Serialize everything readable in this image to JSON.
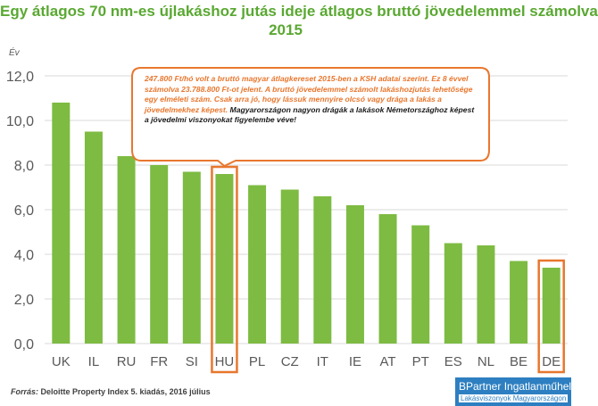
{
  "title_lines": [
    "Egy átlagos 70 nm-es újlakáshoz jutás ideje átlagos bruttó jövedelemmel számolva",
    "2015"
  ],
  "callout": {
    "text_orange": "247.800 Ft/hó volt a bruttó magyar átlagkereset 2015-ben a KSH adatai szerint. Ez 8 évvel számolva 23.788.800 Ft-ot jelent.  A bruttó jövedelemmel számolt lakáshozjutás lehetősége egy elméleti szám. Csak arra jó, hogy lássuk mennyire olcsó vagy drága a lakás a jövedelmekhez képest.",
    "text_black": "Magyarországon nagyon drágák a lakások Németországhoz képest  a jövedelmi viszonyokat figyelembe véve!"
  },
  "source": {
    "label": "Forrás:",
    "text": "Deloitte Property Index 5. kiadás, 2016 július"
  },
  "logo": {
    "line1": "BPartner Ingatlanműhely",
    "line2": "Lakásviszonyok Magyarországon"
  },
  "colors": {
    "bar": "#7dbb42",
    "highlight": "#e8772e",
    "title": "#5aa832",
    "grid": "#d9d9d9",
    "axis_text": "#595959"
  },
  "chart_data": {
    "type": "bar",
    "title": "Egy átlagos 70 nm-es újlakáshoz jutás ideje átlagos bruttó jövedelemmel számolva 2015",
    "ylabel": "Év",
    "xlabel": "",
    "ylim": [
      0,
      12
    ],
    "yticks": [
      "0,0",
      "2,0",
      "4,0",
      "6,0",
      "8,0",
      "10,0",
      "12,0"
    ],
    "grid": true,
    "categories": [
      "UK",
      "IL",
      "RU",
      "FR",
      "SI",
      "HU",
      "PL",
      "CZ",
      "IT",
      "IE",
      "AT",
      "PT",
      "ES",
      "NL",
      "BE",
      "DE"
    ],
    "values": [
      10.8,
      9.5,
      8.4,
      8.0,
      7.7,
      7.6,
      7.1,
      6.9,
      6.6,
      6.2,
      5.8,
      5.3,
      4.5,
      4.4,
      3.7,
      3.4
    ],
    "highlighted": [
      "HU",
      "DE"
    ]
  }
}
